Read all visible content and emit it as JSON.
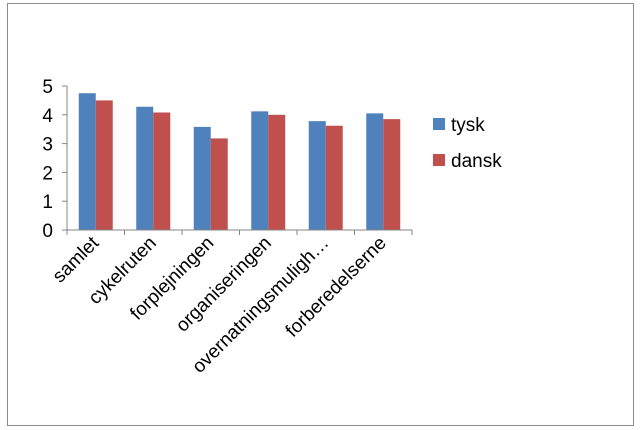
{
  "chart_data": {
    "type": "bar",
    "categories": [
      "samlet",
      "cykelruten",
      "forplejningen",
      "organiseringen",
      "overnatningsmuligh…",
      "forberedelserne"
    ],
    "series": [
      {
        "name": "tysk",
        "color": "#4f81bd",
        "values": [
          4.75,
          4.28,
          3.58,
          4.12,
          3.78,
          4.05
        ]
      },
      {
        "name": "dansk",
        "color": "#c0504d",
        "values": [
          4.5,
          4.08,
          3.18,
          4.0,
          3.62,
          3.85
        ]
      }
    ],
    "ylim": [
      0,
      5
    ],
    "yticks": [
      "0",
      "1",
      "2",
      "3",
      "4",
      "5"
    ],
    "grid": false,
    "legend_position": "right"
  }
}
